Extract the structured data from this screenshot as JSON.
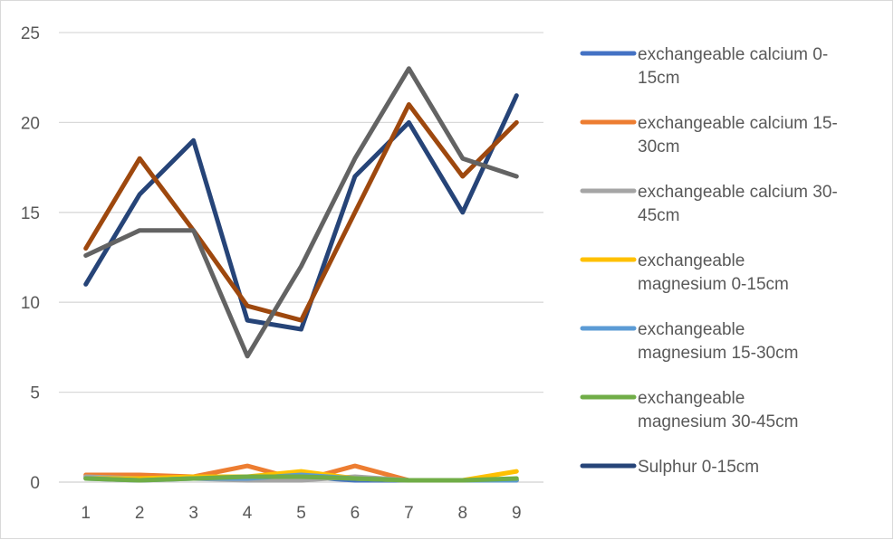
{
  "chart_data": {
    "type": "line",
    "title": "",
    "xlabel": "",
    "ylabel": "",
    "x": [
      1,
      2,
      3,
      4,
      5,
      6,
      7,
      8,
      9
    ],
    "ylim": [
      0,
      25
    ],
    "yticks": [
      0,
      5,
      10,
      15,
      20,
      25
    ],
    "grid": "horizontal",
    "legend_position": "right",
    "series": [
      {
        "name": " exchangeable calcium 0-15cm",
        "color": "#4472C4",
        "values": [
          0.3,
          0.3,
          0.2,
          0.2,
          0.3,
          0.1,
          0.1,
          0.1,
          0.1
        ]
      },
      {
        "name": "exchangeable calcium 15-30cm",
        "color": "#ED7D31",
        "values": [
          0.4,
          0.4,
          0.3,
          0.9,
          0.1,
          0.9,
          0.1,
          0.1,
          0.1
        ]
      },
      {
        "name": "exchangeable calcium 30-45cm",
        "color": "#A5A5A5",
        "values": [
          0.3,
          0.2,
          0.2,
          0.1,
          0.1,
          0.3,
          0.1,
          0.1,
          0.1
        ]
      },
      {
        "name": "exchangeable magnesium 0-15cm",
        "color": "#FFC000",
        "values": [
          0.2,
          0.2,
          0.3,
          0.3,
          0.6,
          0.2,
          0.1,
          0.1,
          0.6
        ]
      },
      {
        "name": "exchangeable magnesium 15-30cm",
        "color": "#5B9BD5",
        "values": [
          0.2,
          0.1,
          0.2,
          0.2,
          0.4,
          0.2,
          0.1,
          0.1,
          0.1
        ]
      },
      {
        "name": "exchangeable magnesium 30-45cm",
        "color": "#70AD47",
        "values": [
          0.2,
          0.1,
          0.2,
          0.3,
          0.3,
          0.2,
          0.1,
          0.1,
          0.2
        ]
      },
      {
        "name": "Sulphur 0-15cm",
        "color": "#264478",
        "values": [
          11,
          16,
          19,
          9,
          8.5,
          17,
          20,
          15,
          21.5
        ]
      },
      {
        "name": "",
        "color": "#9E480E",
        "values": [
          13,
          18,
          14,
          9.8,
          9,
          15,
          21,
          17,
          20
        ]
      },
      {
        "name": "",
        "color": "#636363",
        "values": [
          12.6,
          14,
          14,
          7,
          12,
          18,
          23,
          18,
          17
        ]
      }
    ]
  },
  "legend": {
    "entries": [
      {
        "series_index": 0,
        "lines": [
          " exchangeable calcium 0-",
          "15cm"
        ]
      },
      {
        "series_index": 1,
        "lines": [
          "exchangeable calcium 15-",
          "30cm"
        ]
      },
      {
        "series_index": 2,
        "lines": [
          "exchangeable calcium 30-",
          "45cm"
        ]
      },
      {
        "series_index": 3,
        "lines": [
          "exchangeable",
          "magnesium 0-15cm"
        ]
      },
      {
        "series_index": 4,
        "lines": [
          "exchangeable",
          "magnesium 15-30cm"
        ]
      },
      {
        "series_index": 5,
        "lines": [
          "exchangeable",
          "magnesium 30-45cm"
        ]
      },
      {
        "series_index": 6,
        "lines": [
          "Sulphur 0-15cm"
        ]
      }
    ]
  }
}
